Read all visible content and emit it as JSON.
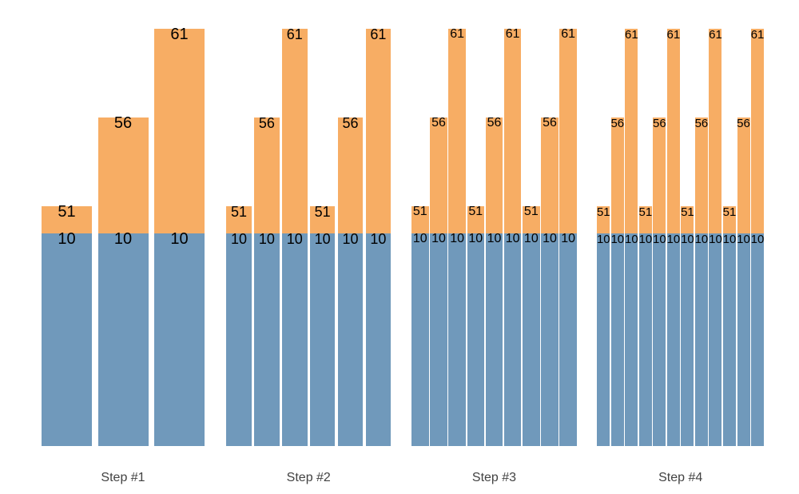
{
  "chart_data": {
    "type": "bar",
    "variant": "stacked-step-groups",
    "title": "",
    "xlabel": "",
    "ylabel": "",
    "legend": "none",
    "grid": false,
    "axes": "none",
    "background": "#ffffff",
    "base_value": 10,
    "base_label": "10",
    "pattern_values": [
      51,
      56,
      61
    ],
    "groups": [
      {
        "label": "Step #1",
        "values": [
          51,
          56,
          61
        ]
      },
      {
        "label": "Step #2",
        "values": [
          51,
          56,
          61,
          51,
          56,
          61
        ]
      },
      {
        "label": "Step #3",
        "values": [
          51,
          56,
          61,
          51,
          56,
          61,
          51,
          56,
          61
        ]
      },
      {
        "label": "Step #4",
        "values": [
          51,
          56,
          61,
          51,
          56,
          61,
          51,
          56,
          61,
          51,
          56,
          61
        ]
      }
    ],
    "series": [
      {
        "name": "base-segment",
        "color": "#7099bb",
        "constant_value": 10
      },
      {
        "name": "value-segment",
        "color": "#f7ad64"
      }
    ],
    "colors": {
      "bar_base": "#7099bb",
      "bar_value": "#f7ad64",
      "value_label": "#000000",
      "step_label": "#424242",
      "background": "#ffffff"
    }
  }
}
